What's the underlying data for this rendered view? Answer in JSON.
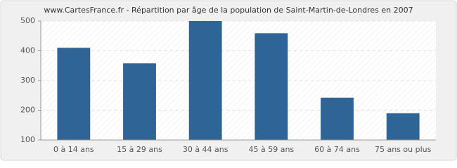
{
  "chart_data": {
    "type": "bar",
    "title": "www.CartesFrance.fr - Répartition par âge de la population de Saint-Martin-de-Londres en 2007",
    "categories": [
      "0 à 14 ans",
      "15 à 29 ans",
      "30 à 44 ans",
      "45 à 59 ans",
      "60 à 74 ans",
      "75 ans ou plus"
    ],
    "values": [
      410,
      358,
      500,
      459,
      242,
      190
    ],
    "color": "#2e6496",
    "ylim": [
      100,
      500
    ],
    "yticks": [
      100,
      200,
      300,
      400,
      500
    ],
    "grid": true
  }
}
